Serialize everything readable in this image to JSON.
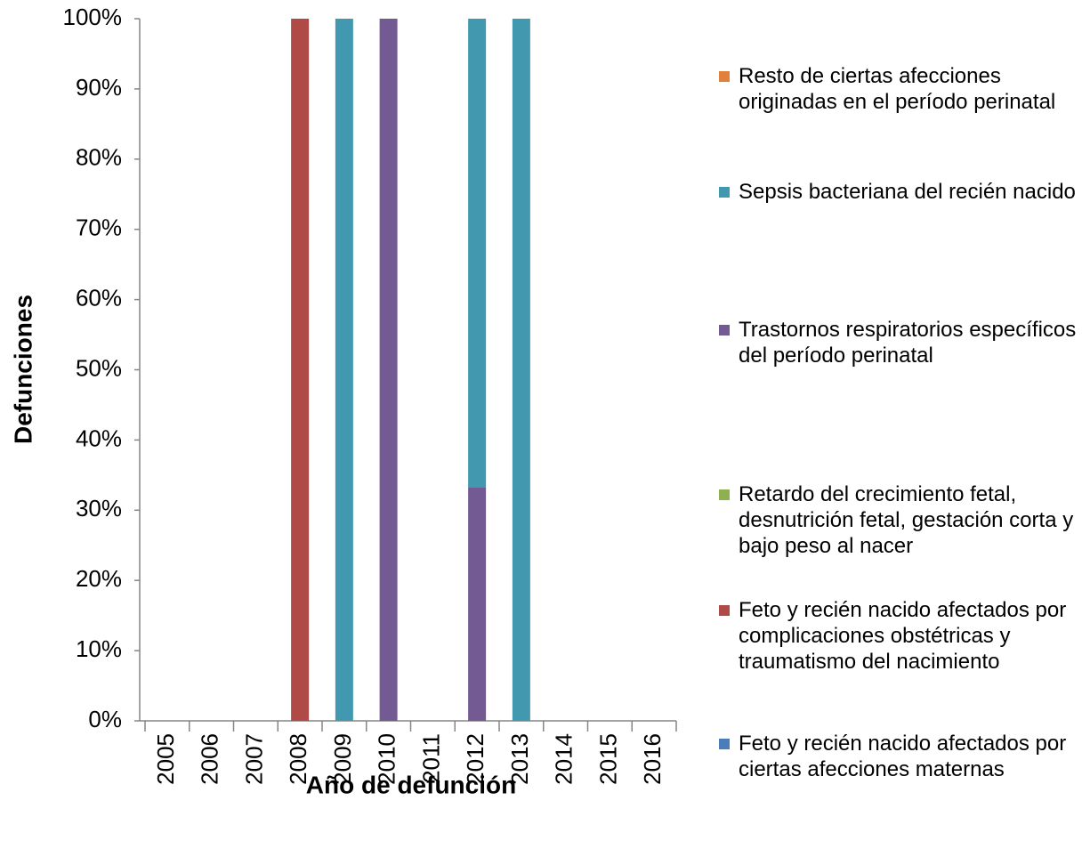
{
  "chart_data": {
    "type": "stacked_bar",
    "x_label": "Año de defunción",
    "y_label": "Defunciones",
    "categories": [
      "2005",
      "2006",
      "2007",
      "2008",
      "2009",
      "2010",
      "2011",
      "2012",
      "2013",
      "2014",
      "2015",
      "2016"
    ],
    "series": [
      {
        "name": "Feto y recién nacido afectados por ciertas afecciones maternas",
        "color": "#4a7ebb",
        "values": [
          0,
          0,
          0,
          0,
          0,
          0,
          0,
          0,
          0,
          0,
          0,
          0
        ]
      },
      {
        "name": "Feto y recién nacido afectados por complicaciones obstétricas y traumatismo del nacimiento",
        "color": "#b04a47",
        "values": [
          0,
          0,
          0,
          100,
          0,
          0,
          0,
          0,
          0,
          0,
          0,
          0
        ]
      },
      {
        "name": "Retardo del crecimiento fetal, desnutrición fetal, gestación corta y bajo peso al nacer",
        "color": "#8db050",
        "values": [
          0,
          0,
          0,
          0,
          0,
          0,
          0,
          0,
          0,
          0,
          0,
          0
        ]
      },
      {
        "name": "Trastornos respiratorios específicos del período perinatal",
        "color": "#735a93",
        "values": [
          0,
          0,
          0,
          0,
          0,
          100,
          0,
          33.3,
          0,
          0,
          0,
          0
        ]
      },
      {
        "name": "Sepsis bacteriana del recién nacido",
        "color": "#4299af",
        "values": [
          0,
          0,
          0,
          0,
          100,
          0,
          0,
          66.7,
          100,
          0,
          0,
          0
        ]
      },
      {
        "name": "Resto de ciertas afecciones originadas en el período perinatal",
        "color": "#e0803a",
        "values": [
          0,
          0,
          0,
          0,
          0,
          0,
          0,
          0,
          0,
          0,
          0,
          0
        ]
      }
    ],
    "ylim": [
      0,
      100
    ],
    "yticks": [
      {
        "value": 0,
        "label": "0%"
      },
      {
        "value": 10,
        "label": "10%"
      },
      {
        "value": 20,
        "label": "20%"
      },
      {
        "value": 30,
        "label": "30%"
      },
      {
        "value": 40,
        "label": "40%"
      },
      {
        "value": 50,
        "label": "50%"
      },
      {
        "value": 60,
        "label": "60%"
      },
      {
        "value": 70,
        "label": "70%"
      },
      {
        "value": 80,
        "label": "80%"
      },
      {
        "value": 90,
        "label": "90%"
      },
      {
        "value": 100,
        "label": "100%"
      }
    ],
    "legend": "right"
  }
}
